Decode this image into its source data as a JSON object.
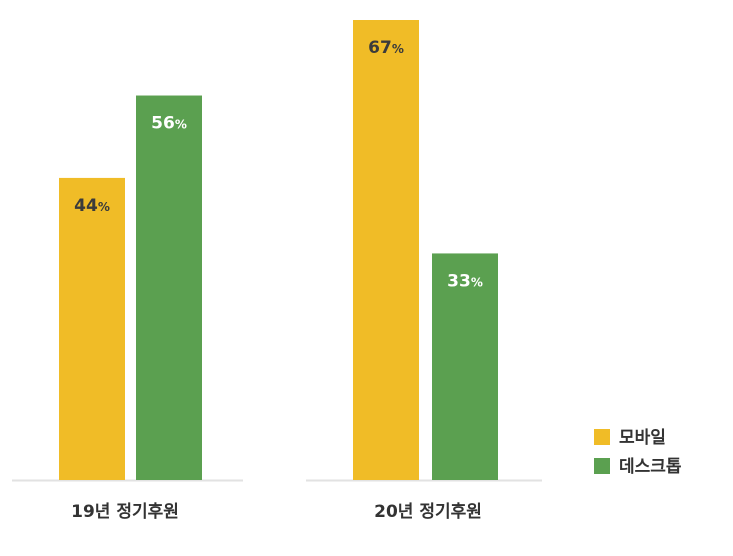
{
  "chart_data": {
    "type": "bar",
    "categories": [
      "19년 정기후원",
      "20년 정기후원"
    ],
    "series": [
      {
        "name": "모바일",
        "values": [
          44,
          67
        ],
        "color": "#F0BC27",
        "label_color": "#3B3B3B"
      },
      {
        "name": "데스크톱",
        "values": [
          56,
          33
        ],
        "color": "#5BA050",
        "label_color": "#FFFFFF"
      }
    ],
    "value_suffix": "%",
    "ylim": [
      0,
      67
    ],
    "grid": false,
    "legend_position": "bottom-right",
    "baseline_color": "#E2E2E2"
  }
}
